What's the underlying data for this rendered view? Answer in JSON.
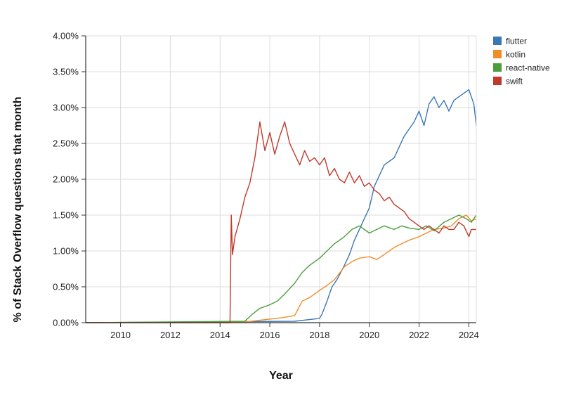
{
  "chart_data": {
    "type": "line",
    "title": "",
    "xlabel": "Year",
    "ylabel": "% of Stack Overflow questions that month",
    "xlim": [
      2008.6,
      2024.3
    ],
    "ylim": [
      0,
      4
    ],
    "x_ticks": [
      2010,
      2012,
      2014,
      2016,
      2018,
      2020,
      2022,
      2024
    ],
    "x_tick_labels": [
      "2010",
      "2012",
      "2014",
      "2016",
      "2018",
      "2020",
      "2022",
      "2024"
    ],
    "y_ticks": [
      0,
      0.5,
      1.0,
      1.5,
      2.0,
      2.5,
      3.0,
      3.5,
      4.0
    ],
    "y_tick_labels": [
      "0.00%",
      "0.50%",
      "1.00%",
      "1.50%",
      "2.00%",
      "2.50%",
      "3.00%",
      "3.50%",
      "4.00%"
    ],
    "grid": true,
    "legend_position": "top-right",
    "series": [
      {
        "name": "flutter",
        "color": "#3a78b5",
        "x": [
          2008.6,
          2017.0,
          2017.5,
          2018.0,
          2018.1,
          2018.3,
          2018.5,
          2018.7,
          2019.0,
          2019.2,
          2019.4,
          2019.6,
          2019.8,
          2020.0,
          2020.2,
          2020.4,
          2020.6,
          2020.8,
          2021.0,
          2021.2,
          2021.4,
          2021.6,
          2021.8,
          2022.0,
          2022.2,
          2022.4,
          2022.6,
          2022.8,
          2023.0,
          2023.2,
          2023.4,
          2023.6,
          2023.8,
          2024.0,
          2024.2,
          2024.3
        ],
        "y": [
          0.0,
          0.02,
          0.04,
          0.06,
          0.12,
          0.3,
          0.5,
          0.6,
          0.8,
          0.95,
          1.15,
          1.3,
          1.45,
          1.6,
          1.9,
          2.05,
          2.2,
          2.25,
          2.3,
          2.45,
          2.6,
          2.7,
          2.8,
          2.95,
          2.75,
          3.05,
          3.15,
          3.0,
          3.1,
          2.95,
          3.1,
          3.15,
          3.2,
          3.25,
          3.05,
          2.75
        ]
      },
      {
        "name": "kotlin",
        "color": "#f28c28",
        "x": [
          2008.6,
          2015.0,
          2015.5,
          2016.0,
          2016.5,
          2017.0,
          2017.3,
          2017.6,
          2018.0,
          2018.3,
          2018.6,
          2019.0,
          2019.3,
          2019.6,
          2020.0,
          2020.3,
          2020.6,
          2021.0,
          2021.3,
          2021.6,
          2022.0,
          2022.3,
          2022.6,
          2023.0,
          2023.3,
          2023.6,
          2023.9,
          2024.1,
          2024.3
        ],
        "y": [
          0.0,
          0.01,
          0.03,
          0.05,
          0.07,
          0.1,
          0.3,
          0.35,
          0.45,
          0.52,
          0.6,
          0.78,
          0.85,
          0.9,
          0.92,
          0.88,
          0.95,
          1.05,
          1.1,
          1.15,
          1.2,
          1.25,
          1.3,
          1.32,
          1.35,
          1.45,
          1.5,
          1.42,
          1.45
        ]
      },
      {
        "name": "react-native",
        "color": "#4a9e3b",
        "x": [
          2008.6,
          2015.0,
          2015.3,
          2015.6,
          2016.0,
          2016.3,
          2016.6,
          2017.0,
          2017.3,
          2017.6,
          2018.0,
          2018.3,
          2018.6,
          2019.0,
          2019.3,
          2019.6,
          2020.0,
          2020.3,
          2020.6,
          2021.0,
          2021.3,
          2021.6,
          2022.0,
          2022.3,
          2022.6,
          2023.0,
          2023.3,
          2023.6,
          2023.9,
          2024.1,
          2024.3
        ],
        "y": [
          0.0,
          0.02,
          0.12,
          0.2,
          0.25,
          0.3,
          0.4,
          0.55,
          0.7,
          0.8,
          0.9,
          1.0,
          1.1,
          1.2,
          1.3,
          1.35,
          1.25,
          1.3,
          1.35,
          1.3,
          1.35,
          1.32,
          1.3,
          1.35,
          1.28,
          1.4,
          1.45,
          1.5,
          1.45,
          1.4,
          1.5
        ]
      },
      {
        "name": "swift",
        "color": "#c0392b",
        "x": [
          2008.6,
          2014.4,
          2014.45,
          2014.5,
          2014.6,
          2014.8,
          2015.0,
          2015.2,
          2015.4,
          2015.6,
          2015.8,
          2016.0,
          2016.2,
          2016.4,
          2016.6,
          2016.8,
          2017.0,
          2017.2,
          2017.4,
          2017.6,
          2017.8,
          2018.0,
          2018.2,
          2018.4,
          2018.6,
          2018.8,
          2019.0,
          2019.2,
          2019.4,
          2019.6,
          2019.8,
          2020.0,
          2020.2,
          2020.4,
          2020.6,
          2020.8,
          2021.0,
          2021.2,
          2021.4,
          2021.6,
          2021.8,
          2022.0,
          2022.2,
          2022.4,
          2022.6,
          2022.8,
          2023.0,
          2023.2,
          2023.4,
          2023.6,
          2023.8,
          2024.0,
          2024.1,
          2024.3
        ],
        "y": [
          0.0,
          0.0,
          1.5,
          0.95,
          1.2,
          1.45,
          1.75,
          1.95,
          2.3,
          2.8,
          2.4,
          2.65,
          2.35,
          2.6,
          2.8,
          2.5,
          2.35,
          2.2,
          2.4,
          2.25,
          2.3,
          2.2,
          2.3,
          2.05,
          2.15,
          2.0,
          1.95,
          2.1,
          1.95,
          2.05,
          1.9,
          1.95,
          1.85,
          1.8,
          1.7,
          1.75,
          1.65,
          1.6,
          1.55,
          1.45,
          1.4,
          1.35,
          1.3,
          1.35,
          1.3,
          1.25,
          1.35,
          1.3,
          1.3,
          1.4,
          1.35,
          1.2,
          1.3,
          1.3
        ]
      }
    ]
  }
}
